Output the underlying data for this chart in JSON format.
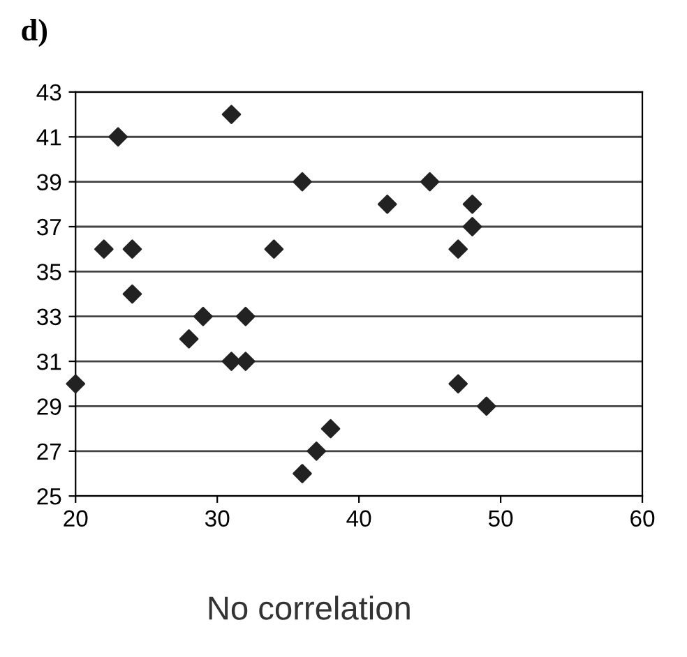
{
  "chart_data": {
    "type": "scatter",
    "title": "d)",
    "x": [
      20,
      22,
      23,
      24,
      24,
      28,
      29,
      31,
      31,
      32,
      32,
      34,
      36,
      36,
      37,
      38,
      42,
      45,
      47,
      47,
      48,
      48,
      49
    ],
    "values": [
      30,
      36,
      41,
      36,
      34,
      32,
      33,
      42,
      31,
      31,
      33,
      36,
      39,
      26,
      27,
      28,
      38,
      39,
      36,
      30,
      37,
      38,
      29
    ],
    "color": "#222222",
    "marker": "diamond",
    "xlim": [
      20,
      60
    ],
    "xticks": [
      20,
      30,
      40,
      50,
      60
    ],
    "ylim": [
      25,
      43
    ],
    "yticks": [
      25,
      27,
      29,
      31,
      33,
      35,
      37,
      39,
      41,
      43
    ],
    "grid": "y",
    "legend": false,
    "annotations": [
      "No correlation"
    ]
  }
}
